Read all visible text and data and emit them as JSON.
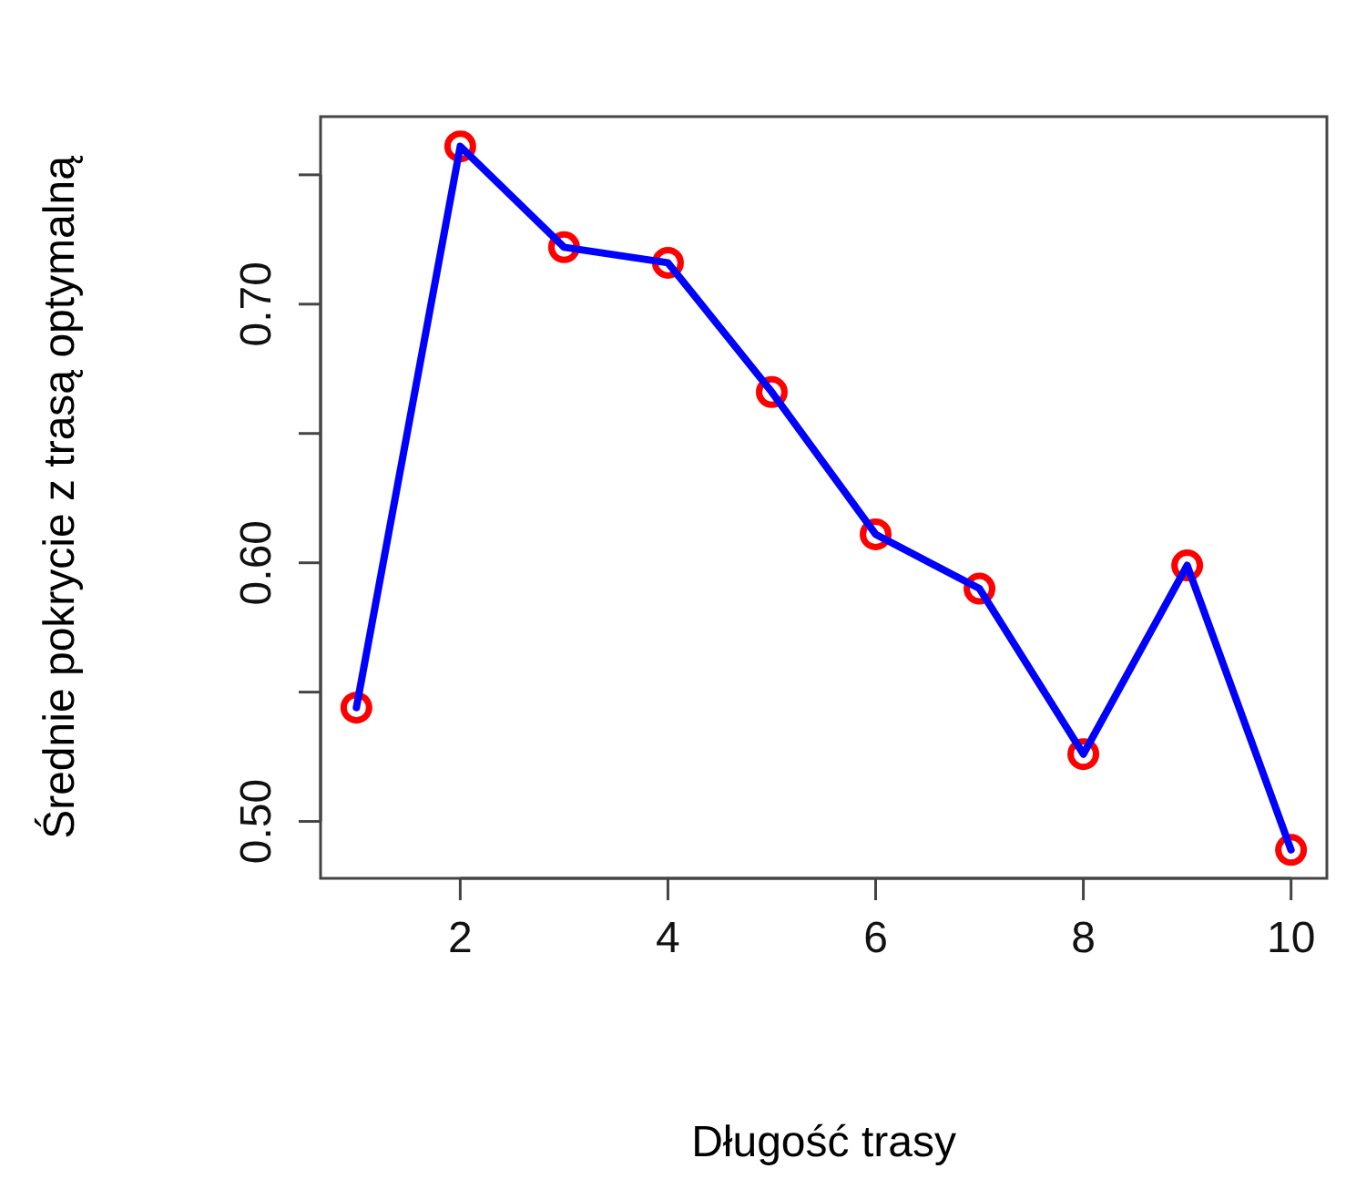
{
  "chart_data": {
    "type": "line",
    "xlabel": "Długość trasy",
    "ylabel": "Średnie pokrycie z trasą optymalną",
    "x": [
      1,
      2,
      3,
      4,
      5,
      6,
      7,
      8,
      9,
      10
    ],
    "series": [
      {
        "type": "scatter",
        "color": "#ff0000",
        "marker": "circle",
        "values": [
          0.544,
          0.761,
          0.722,
          0.716,
          0.666,
          0.611,
          0.59,
          0.526,
          0.599,
          0.489
        ]
      },
      {
        "type": "line",
        "color": "#0000ff",
        "marker": "none",
        "line_style": "solid",
        "values": [
          0.544,
          0.761,
          0.722,
          0.716,
          0.666,
          0.611,
          0.59,
          0.526,
          0.599,
          0.489
        ]
      }
    ],
    "xlim": [
      0.655,
      10.345
    ],
    "ylim": [
      0.478,
      0.7725
    ],
    "xticks": [
      2,
      4,
      6,
      8,
      10
    ],
    "yticks": [
      {
        "value": 0.5,
        "label": "0.50"
      },
      {
        "value": 0.55,
        "label": null
      },
      {
        "value": 0.6,
        "label": "0.60"
      },
      {
        "value": 0.65,
        "label": null
      },
      {
        "value": 0.7,
        "label": "0.70"
      },
      {
        "value": 0.75,
        "label": null
      }
    ],
    "grid": false,
    "legend": false
  }
}
